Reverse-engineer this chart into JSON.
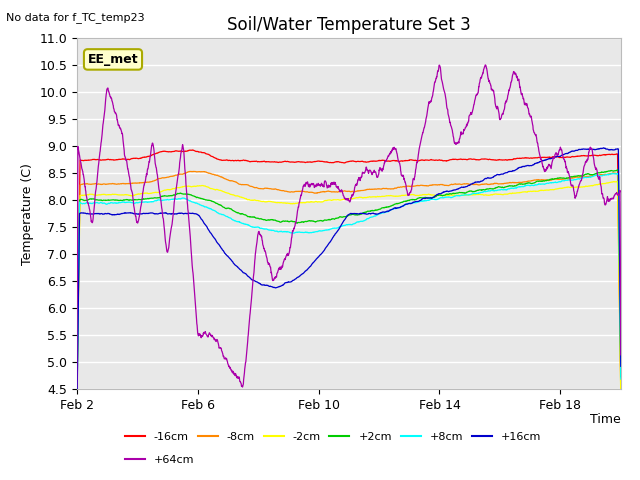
{
  "title": "Soil/Water Temperature Set 3",
  "subtitle": "No data for f_TC_temp23",
  "xlabel": "Time",
  "ylabel": "Temperature (C)",
  "annotation": "EE_met",
  "ylim": [
    4.5,
    11.0
  ],
  "yticks": [
    4.5,
    5.0,
    5.5,
    6.0,
    6.5,
    7.0,
    7.5,
    8.0,
    8.5,
    9.0,
    9.5,
    10.0,
    10.5,
    11.0
  ],
  "xtick_days": [
    0,
    4,
    8,
    12,
    16
  ],
  "xtick_labels": [
    "Feb 2",
    "Feb 6",
    "Feb 10",
    "Feb 14",
    "Feb 18"
  ],
  "series": [
    {
      "label": "-16cm",
      "color": "#ff0000"
    },
    {
      "label": "-8cm",
      "color": "#ff8800"
    },
    {
      "label": "-2cm",
      "color": "#ffff00"
    },
    {
      "label": "+2cm",
      "color": "#00cc00"
    },
    {
      "label": "+8cm",
      "color": "#00ffff"
    },
    {
      "label": "+16cm",
      "color": "#0000cc"
    },
    {
      "label": "+64cm",
      "color": "#aa00aa"
    }
  ],
  "bg_color": "#e8e8e8",
  "grid_color": "#ffffff",
  "title_fontsize": 12,
  "axis_fontsize": 9,
  "tick_fontsize": 9
}
